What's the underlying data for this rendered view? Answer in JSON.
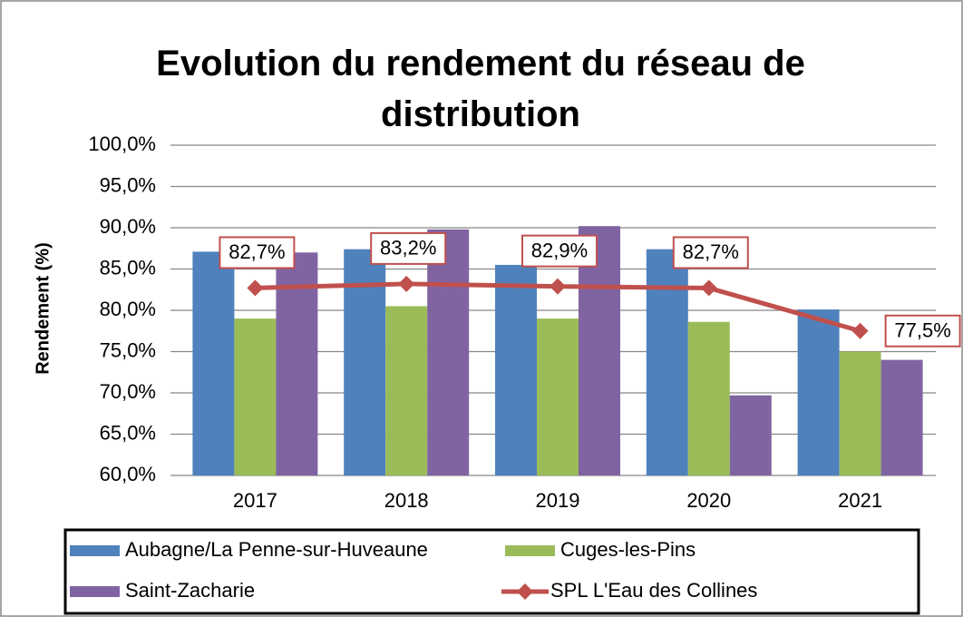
{
  "chart_data": {
    "type": "bar",
    "title": "Evolution du rendement du réseau de distribution",
    "y_label": "Rendement (%)",
    "categories": [
      "2017",
      "2018",
      "2019",
      "2020",
      "2021"
    ],
    "series": [
      {
        "name": "Aubagne/La Penne-sur-Huveaune",
        "color": "#4f81bd",
        "values": [
          87.1,
          87.4,
          85.5,
          87.4,
          80.1
        ]
      },
      {
        "name": "Cuges-les-Pins",
        "color": "#9bbb59",
        "values": [
          79.0,
          80.5,
          79.0,
          78.6,
          75.0
        ]
      },
      {
        "name": "Saint-Zacharie",
        "color": "#8064a2",
        "values": [
          87.0,
          89.8,
          90.2,
          69.7,
          74.0
        ]
      },
      {
        "name": "SPL L'Eau des Collines",
        "color": "#c0504d",
        "type": "line",
        "values": [
          82.7,
          83.2,
          82.9,
          82.7,
          77.5
        ],
        "value_labels": [
          "82,7%",
          "83,2%",
          "82,9%",
          "82,7%",
          "77,5%"
        ]
      }
    ],
    "ylim": [
      60,
      100
    ],
    "yticks": [
      {
        "value": 60,
        "label": "60,0%"
      },
      {
        "value": 65,
        "label": "65,0%"
      },
      {
        "value": 70,
        "label": "70,0%"
      },
      {
        "value": 75,
        "label": "75,0%"
      },
      {
        "value": 80,
        "label": "80,0%"
      },
      {
        "value": 85,
        "label": "85,0%"
      },
      {
        "value": 90,
        "label": "90,0%"
      },
      {
        "value": 95,
        "label": "95,0%"
      },
      {
        "value": 100,
        "label": "100,0%"
      }
    ],
    "grid": true,
    "legend": "bottom"
  }
}
